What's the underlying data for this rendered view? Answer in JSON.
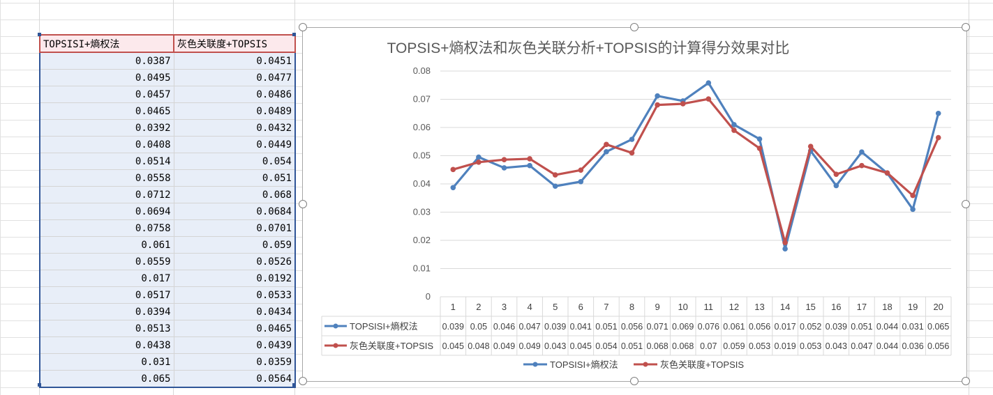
{
  "table": {
    "headers": [
      "TOPSISI+熵权法",
      "灰色关联度+TOPSIS"
    ],
    "rows": [
      [
        "0.0387",
        "0.0451"
      ],
      [
        "0.0495",
        "0.0477"
      ],
      [
        "0.0457",
        "0.0486"
      ],
      [
        "0.0465",
        "0.0489"
      ],
      [
        "0.0392",
        "0.0432"
      ],
      [
        "0.0408",
        "0.0449"
      ],
      [
        "0.0514",
        "0.054"
      ],
      [
        "0.0558",
        "0.051"
      ],
      [
        "0.0712",
        "0.068"
      ],
      [
        "0.0694",
        "0.0684"
      ],
      [
        "0.0758",
        "0.0701"
      ],
      [
        "0.061",
        "0.059"
      ],
      [
        "0.0559",
        "0.0526"
      ],
      [
        "0.017",
        "0.0192"
      ],
      [
        "0.0517",
        "0.0533"
      ],
      [
        "0.0394",
        "0.0434"
      ],
      [
        "0.0513",
        "0.0465"
      ],
      [
        "0.0438",
        "0.0439"
      ],
      [
        "0.031",
        "0.0359"
      ],
      [
        "0.065",
        "0.0564"
      ]
    ]
  },
  "chart_data": {
    "type": "line",
    "title": "TOPSIS+熵权法和灰色关联分析+TOPSIS的计算得分效果对比",
    "xlabel": "",
    "ylabel": "",
    "categories": [
      "1",
      "2",
      "3",
      "4",
      "5",
      "6",
      "7",
      "8",
      "9",
      "10",
      "11",
      "12",
      "13",
      "14",
      "15",
      "16",
      "17",
      "18",
      "19",
      "20"
    ],
    "ylim": [
      0,
      0.08
    ],
    "yticks": [
      "0",
      "0.01",
      "0.02",
      "0.03",
      "0.04",
      "0.05",
      "0.06",
      "0.07",
      "0.08"
    ],
    "grid": true,
    "legend": "bottom",
    "series": [
      {
        "name": "TOPSISI+熵权法",
        "color": "#4f81bd",
        "values": [
          0.0387,
          0.0495,
          0.0457,
          0.0465,
          0.0392,
          0.0408,
          0.0514,
          0.0558,
          0.0712,
          0.0694,
          0.0758,
          0.061,
          0.0559,
          0.017,
          0.0517,
          0.0394,
          0.0513,
          0.0438,
          0.031,
          0.065
        ],
        "labels": [
          "0.039",
          "0.05",
          "0.046",
          "0.047",
          "0.039",
          "0.041",
          "0.051",
          "0.056",
          "0.071",
          "0.069",
          "0.076",
          "0.061",
          "0.056",
          "0.017",
          "0.052",
          "0.039",
          "0.051",
          "0.044",
          "0.031",
          "0.065"
        ]
      },
      {
        "name": "灰色关联度+TOPSIS",
        "color": "#c0504d",
        "values": [
          0.0451,
          0.0477,
          0.0486,
          0.0489,
          0.0432,
          0.0449,
          0.054,
          0.051,
          0.068,
          0.0684,
          0.0701,
          0.059,
          0.0526,
          0.0192,
          0.0533,
          0.0434,
          0.0465,
          0.0439,
          0.0359,
          0.0564
        ],
        "labels": [
          "0.045",
          "0.048",
          "0.049",
          "0.049",
          "0.043",
          "0.045",
          "0.054",
          "0.051",
          "0.068",
          "0.068",
          "0.07",
          "0.059",
          "0.053",
          "0.019",
          "0.053",
          "0.043",
          "0.047",
          "0.044",
          "0.036",
          "0.056"
        ]
      }
    ]
  }
}
